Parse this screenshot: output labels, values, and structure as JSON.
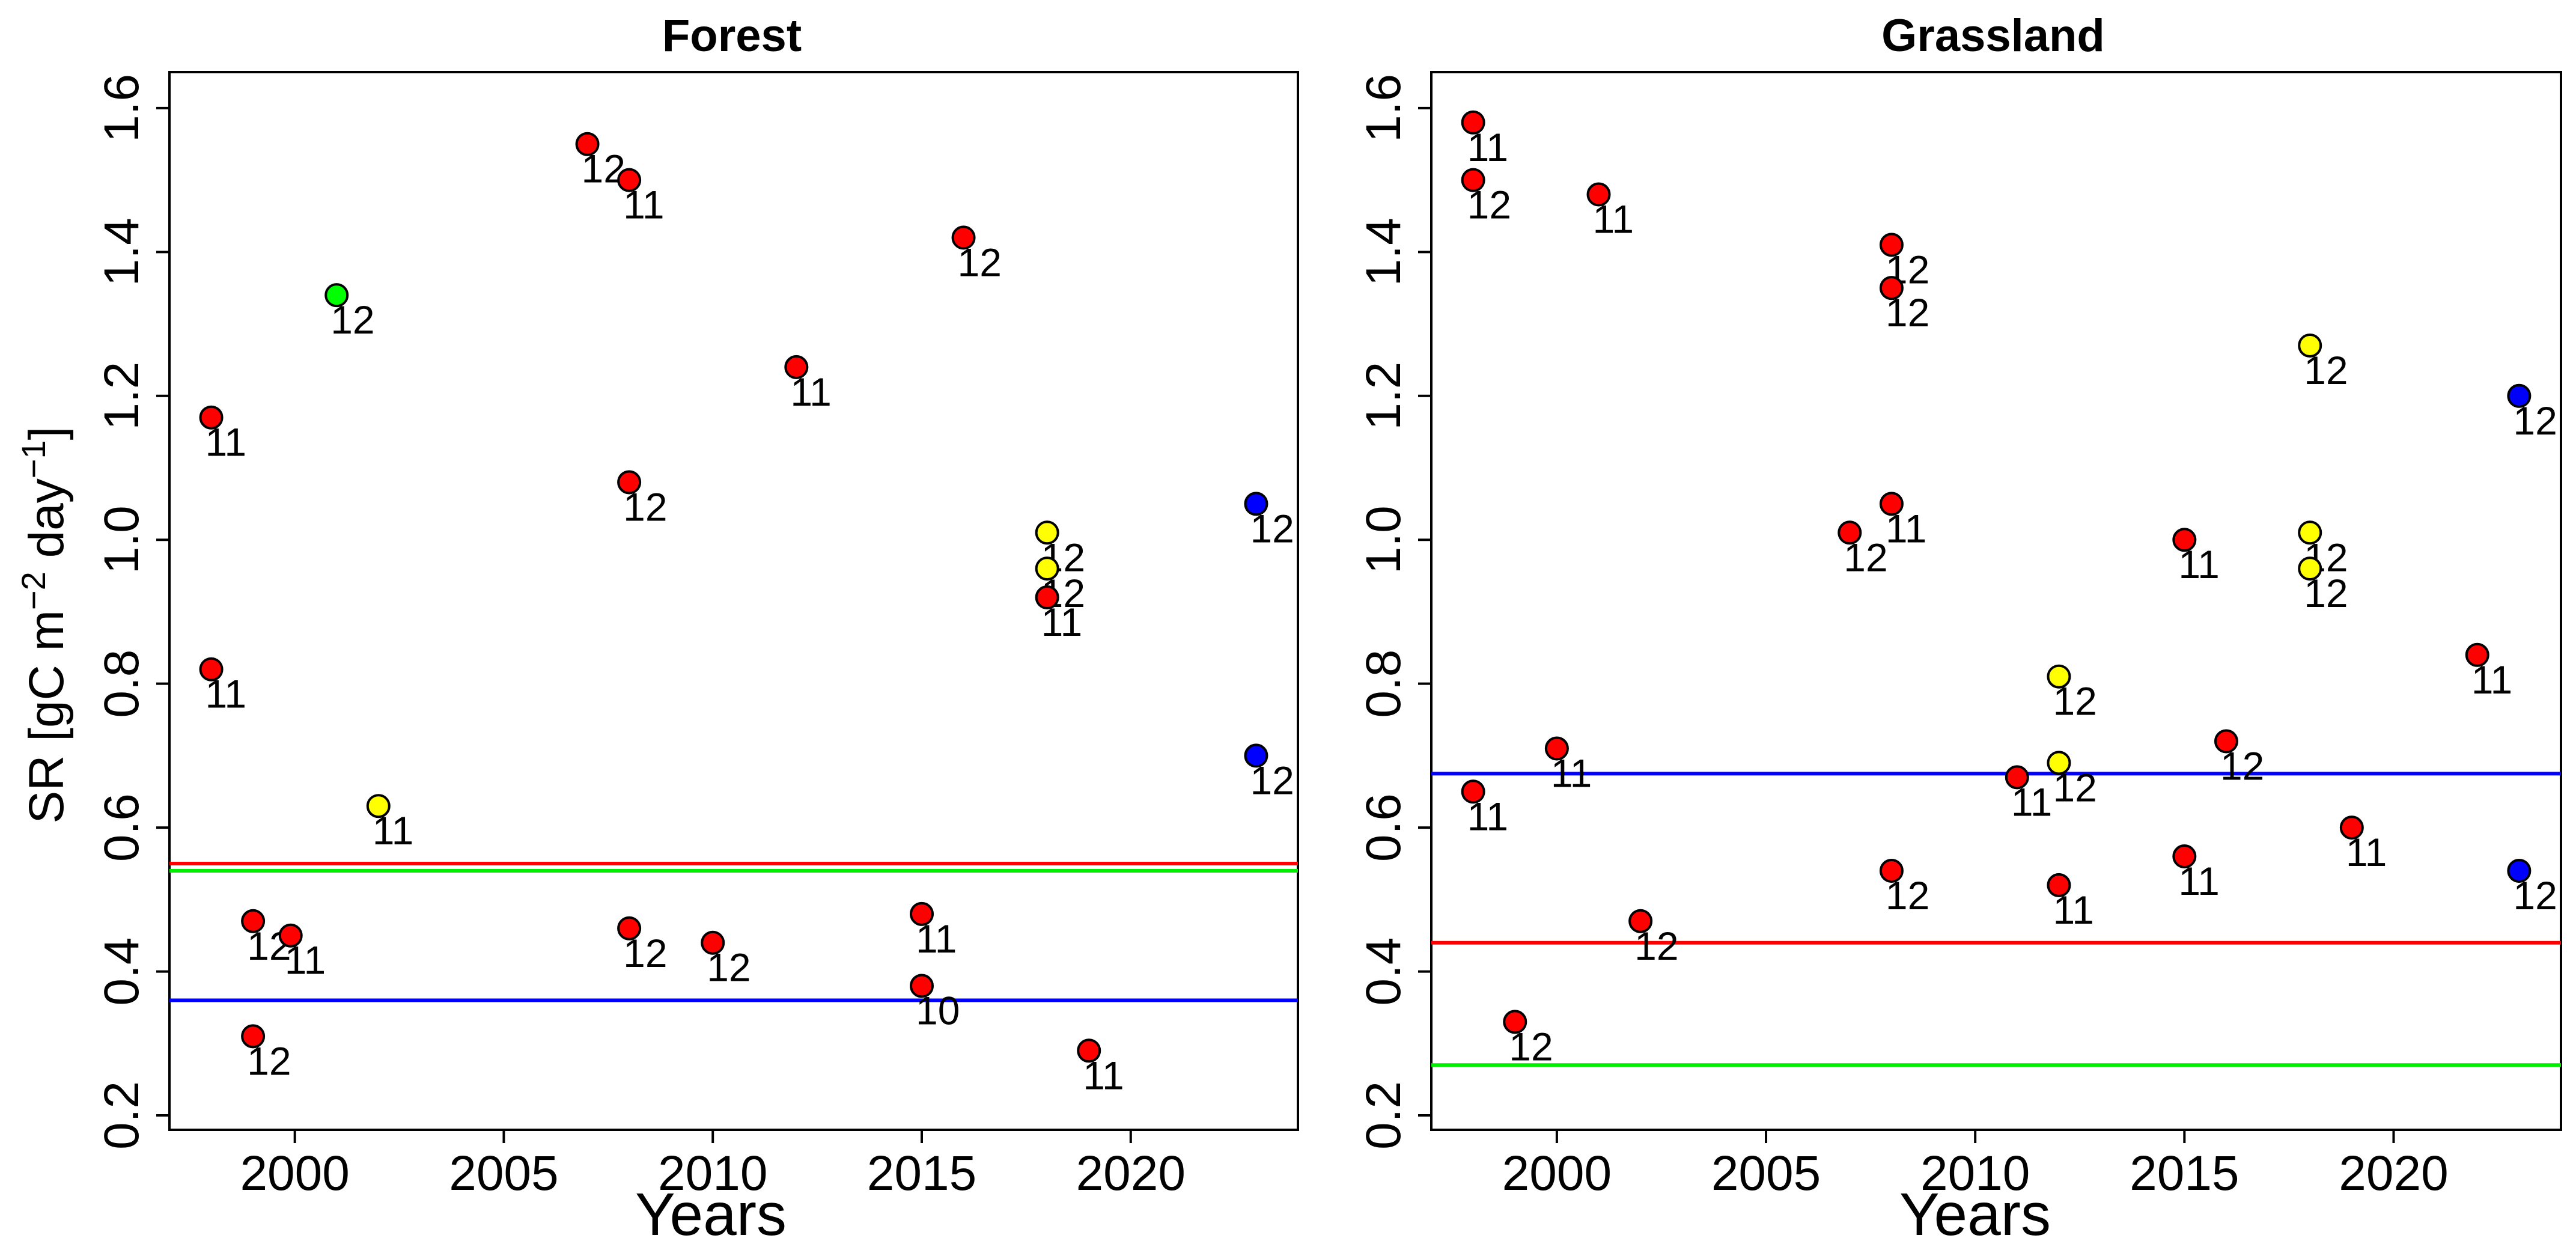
{
  "figure": {
    "ylabel_main": "SR [gC m",
    "ylabel_sup1": "−2",
    "ylabel_mid": " day",
    "ylabel_sup2": "−1",
    "ylabel_end": "]"
  },
  "chart_data": [
    {
      "type": "scatter",
      "title": "Forest",
      "xlabel": "Years",
      "ylabel": "SR [gC m-2 day-1]",
      "xlim": [
        1997,
        2024
      ],
      "ylim": [
        0.18,
        1.65
      ],
      "xticks": [
        2000,
        2005,
        2010,
        2015,
        2020
      ],
      "yticks": [
        0.2,
        0.4,
        0.6,
        0.8,
        1.0,
        1.2,
        1.4,
        1.6
      ],
      "ytick_labels": [
        "0.2",
        "0.4",
        "0.6",
        "0.8",
        "1.0",
        "1.2",
        "1.4",
        "1.6"
      ],
      "hlines": [
        {
          "y": 0.55,
          "color": "#ff0000"
        },
        {
          "y": 0.54,
          "color": "#00ee00"
        },
        {
          "y": 0.36,
          "color": "#0000ff"
        }
      ],
      "points": [
        {
          "x": 1998,
          "y": 1.17,
          "label": "11",
          "color": "#ff0000"
        },
        {
          "x": 1998,
          "y": 0.82,
          "label": "11",
          "color": "#ff0000"
        },
        {
          "x": 1999,
          "y": 0.47,
          "label": "12",
          "color": "#ff0000"
        },
        {
          "x": 1999,
          "y": 0.31,
          "label": "12",
          "color": "#ff0000"
        },
        {
          "x": 1999.9,
          "y": 0.45,
          "label": "11",
          "color": "#ff0000"
        },
        {
          "x": 2001,
          "y": 1.34,
          "label": "12",
          "color": "#00ff00"
        },
        {
          "x": 2002,
          "y": 0.63,
          "label": "11",
          "color": "#ffff00"
        },
        {
          "x": 2007,
          "y": 1.55,
          "label": "12",
          "color": "#ff0000"
        },
        {
          "x": 2008,
          "y": 1.5,
          "label": "11",
          "color": "#ff0000"
        },
        {
          "x": 2008,
          "y": 1.08,
          "label": "12",
          "color": "#ff0000"
        },
        {
          "x": 2008,
          "y": 0.46,
          "label": "12",
          "color": "#ff0000"
        },
        {
          "x": 2010,
          "y": 0.44,
          "label": "12",
          "color": "#ff0000"
        },
        {
          "x": 2012,
          "y": 1.24,
          "label": "11",
          "color": "#ff0000"
        },
        {
          "x": 2015,
          "y": 0.48,
          "label": "11",
          "color": "#ff0000"
        },
        {
          "x": 2015,
          "y": 0.38,
          "label": "10",
          "color": "#ff0000"
        },
        {
          "x": 2016,
          "y": 1.42,
          "label": "12",
          "color": "#ff0000"
        },
        {
          "x": 2018,
          "y": 1.01,
          "label": "12",
          "color": "#ffff00"
        },
        {
          "x": 2018,
          "y": 0.96,
          "label": "12",
          "color": "#ffff00"
        },
        {
          "x": 2018,
          "y": 0.92,
          "label": "11",
          "color": "#ff0000"
        },
        {
          "x": 2019,
          "y": 0.29,
          "label": "11",
          "color": "#ff0000"
        },
        {
          "x": 2023,
          "y": 1.05,
          "label": "12",
          "color": "#0000ff"
        },
        {
          "x": 2023,
          "y": 0.7,
          "label": "12",
          "color": "#0000ff"
        }
      ]
    },
    {
      "type": "scatter",
      "title": "Grassland",
      "xlabel": "Years",
      "ylabel": "SR [gC m-2 day-1]",
      "xlim": [
        1997,
        2024
      ],
      "ylim": [
        0.18,
        1.65
      ],
      "xticks": [
        2000,
        2005,
        2010,
        2015,
        2020
      ],
      "yticks": [
        0.2,
        0.4,
        0.6,
        0.8,
        1.0,
        1.2,
        1.4,
        1.6
      ],
      "ytick_labels": [
        "0.2",
        "0.4",
        "0.6",
        "0.8",
        "1.0",
        "1.2",
        "1.4",
        "1.6"
      ],
      "hlines": [
        {
          "y": 0.675,
          "color": "#0000ff"
        },
        {
          "y": 0.44,
          "color": "#ff0000"
        },
        {
          "y": 0.27,
          "color": "#00ee00"
        }
      ],
      "points": [
        {
          "x": 1998,
          "y": 1.58,
          "label": "11",
          "color": "#ff0000"
        },
        {
          "x": 1998,
          "y": 1.5,
          "label": "12",
          "color": "#ff0000"
        },
        {
          "x": 1998,
          "y": 0.65,
          "label": "11",
          "color": "#ff0000"
        },
        {
          "x": 1999,
          "y": 0.33,
          "label": "12",
          "color": "#ff0000"
        },
        {
          "x": 2000,
          "y": 0.71,
          "label": "11",
          "color": "#ff0000"
        },
        {
          "x": 2001,
          "y": 1.48,
          "label": "11",
          "color": "#ff0000"
        },
        {
          "x": 2002,
          "y": 0.47,
          "label": "12",
          "color": "#ff0000"
        },
        {
          "x": 2007,
          "y": 1.01,
          "label": "12",
          "color": "#ff0000"
        },
        {
          "x": 2008,
          "y": 1.41,
          "label": "12",
          "color": "#ff0000"
        },
        {
          "x": 2008,
          "y": 1.35,
          "label": "12",
          "color": "#ff0000"
        },
        {
          "x": 2008,
          "y": 1.05,
          "label": "11",
          "color": "#ff0000"
        },
        {
          "x": 2008,
          "y": 0.54,
          "label": "12",
          "color": "#ff0000"
        },
        {
          "x": 2011,
          "y": 0.67,
          "label": "11",
          "color": "#ff0000"
        },
        {
          "x": 2012,
          "y": 0.81,
          "label": "12",
          "color": "#ffff00"
        },
        {
          "x": 2012,
          "y": 0.69,
          "label": "12",
          "color": "#ffff00"
        },
        {
          "x": 2012,
          "y": 0.52,
          "label": "11",
          "color": "#ff0000"
        },
        {
          "x": 2015,
          "y": 1.0,
          "label": "11",
          "color": "#ff0000"
        },
        {
          "x": 2015,
          "y": 0.56,
          "label": "11",
          "color": "#ff0000"
        },
        {
          "x": 2016,
          "y": 0.72,
          "label": "12",
          "color": "#ff0000"
        },
        {
          "x": 2018,
          "y": 1.27,
          "label": "12",
          "color": "#ffff00"
        },
        {
          "x": 2018,
          "y": 1.01,
          "label": "12",
          "color": "#ffff00"
        },
        {
          "x": 2018,
          "y": 0.96,
          "label": "12",
          "color": "#ffff00"
        },
        {
          "x": 2019,
          "y": 0.6,
          "label": "11",
          "color": "#ff0000"
        },
        {
          "x": 2022,
          "y": 0.84,
          "label": "11",
          "color": "#ff0000"
        },
        {
          "x": 2023,
          "y": 1.2,
          "label": "12",
          "color": "#0000ff"
        },
        {
          "x": 2023,
          "y": 0.54,
          "label": "12",
          "color": "#0000ff"
        }
      ]
    }
  ]
}
